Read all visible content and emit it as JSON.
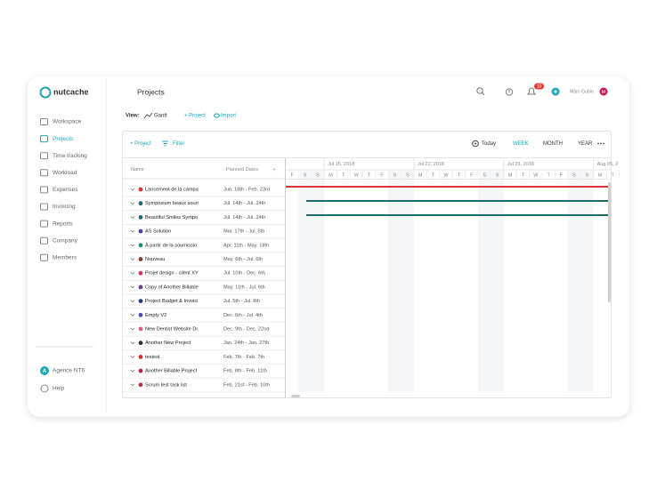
{
  "sidebar": {
    "logo": "nutcache",
    "menu": [
      "Workspace",
      "Projects",
      "Time tracking",
      "Workload",
      "Expenses",
      "Invoicing",
      "Reports",
      "Company",
      "Members"
    ],
    "account_initial": "A",
    "account": "Agence NT6",
    "help": "Help"
  },
  "header": {
    "title": "Projects",
    "notifications": "10",
    "user": "Marc Gubin",
    "avatar": "M"
  },
  "view": {
    "label": "View:",
    "mode": "Gantt",
    "add_project": "+ Project",
    "import": "Import"
  },
  "gantt": {
    "toolbar": {
      "add_project": "+ Project",
      "filter": "Filter",
      "today": "Today",
      "scales": [
        "WEEK",
        "MONTH",
        "YEAR"
      ]
    },
    "columns": [
      "Name",
      "Planned Dates"
    ],
    "weeks": [
      "Jul 15, 2018",
      "Jul 22, 2018",
      "Jul 29, 2018",
      "Aug 05, 2"
    ],
    "days": [
      "F",
      "S",
      "S",
      "M",
      "T",
      "W",
      "T",
      "F",
      "S",
      "S",
      "M",
      "T",
      "W",
      "T",
      "F",
      "S",
      "S",
      "M",
      "T",
      "W",
      "T",
      "F",
      "S",
      "S",
      "M",
      "T"
    ],
    "rows": [
      {
        "name": "Lancement de la campa",
        "dates": "Jun. 18th - Feb. 23rd",
        "color": "#d8353a"
      },
      {
        "name": "Symposium beaux souri",
        "dates": "Jul. 14th - Jul. 24th",
        "color": "#1d6b6a"
      },
      {
        "name": "Beautiful Smiles Sympo",
        "dates": "Jul. 14th - Jul. 24th",
        "color": "#1d6b6a"
      },
      {
        "name": "AS Solution",
        "dates": "Mar. 17th - Jul. 5th",
        "color": "#4b3f9e"
      },
      {
        "name": "À partir de la soumissio",
        "dates": "Apr. 11th - May. 18th",
        "color": "#1f8a7a"
      },
      {
        "name": "Nouveau",
        "dates": "May. 6th - Jul. 6th",
        "color": "#7a4336"
      },
      {
        "name": "Projet design - client XY",
        "dates": "Jul. 10th - Dec. 6th",
        "color": "#d0345a"
      },
      {
        "name": "Copy of Another Billable",
        "dates": "May. 11th - Jul. 6th",
        "color": "#6a3d8a"
      },
      {
        "name": "Project Budget & Invoici",
        "dates": "Jul. 5th - Jul. 8th",
        "color": "#2a3a7a"
      },
      {
        "name": "Empty V2",
        "dates": "Dec. 6th - Jul. 4th",
        "color": "#4a4ab0"
      },
      {
        "name": "New Dentist Website Dr.",
        "dates": "Dec. 9th - Dec. 22nd",
        "color": "#e05a8a"
      },
      {
        "name": "Another New Project",
        "dates": "Jan. 24th - Jan. 27th",
        "color": "#333333"
      },
      {
        "name": "testest",
        "dates": "Feb. 7th - Feb. 7th",
        "color": "#d03030"
      },
      {
        "name": "Another Billable Project",
        "dates": "Feb. 8th - Feb. 11th",
        "color": "#b0204a"
      },
      {
        "name": "Scrum test task list",
        "dates": "Feb. 21st - Feb. 10th",
        "color": "#c0304a"
      }
    ]
  }
}
